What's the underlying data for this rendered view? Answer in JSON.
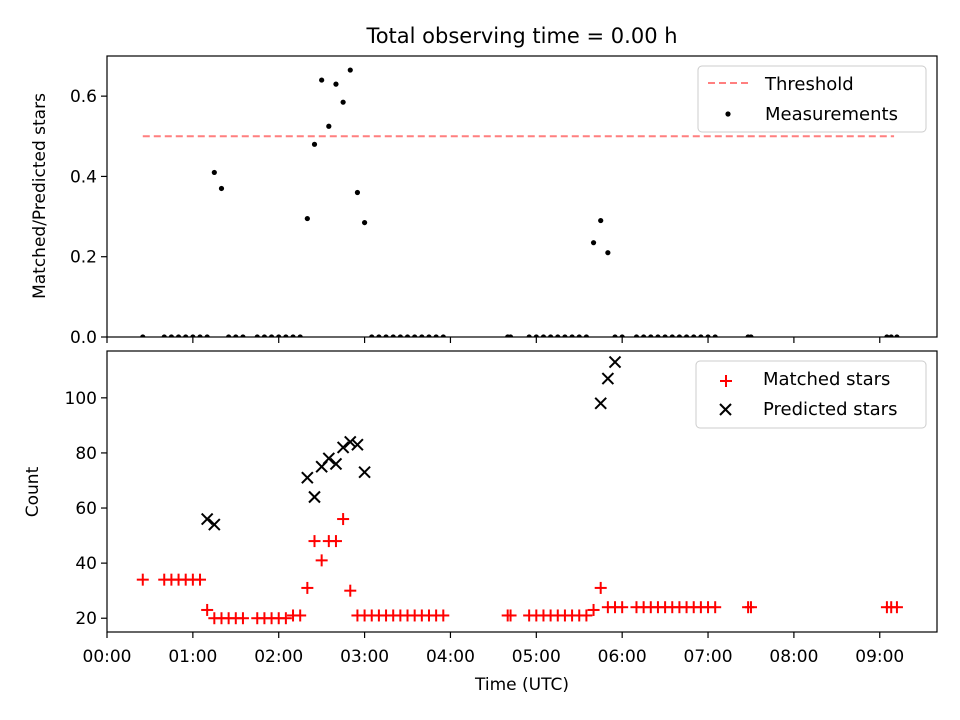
{
  "chart_data": [
    {
      "type": "scatter",
      "title": "Total observing time = 0.00 h",
      "xlabel": "",
      "ylabel": "Matched/Predicted stars",
      "xlim": [
        "00:00",
        "09:40"
      ],
      "ylim": [
        0,
        0.7
      ],
      "yticks": [
        0.0,
        0.2,
        0.4,
        0.6
      ],
      "ytick_labels": [
        "0.0",
        "0.2",
        "0.4",
        "0.6"
      ],
      "legend_position": "top-right",
      "threshold": {
        "name": "Threshold",
        "color": "#ff7f7f",
        "style": "dashed",
        "value": 0.5,
        "x_from": "00:25",
        "x_to": "09:10"
      },
      "series": [
        {
          "name": "Measurements",
          "color": "#000000",
          "marker": "dot",
          "x": [
            "00:25",
            "00:40",
            "00:45",
            "00:50",
            "00:55",
            "01:00",
            "01:05",
            "01:10",
            "01:15",
            "01:20",
            "01:25",
            "01:30",
            "01:35",
            "01:45",
            "01:50",
            "01:55",
            "02:00",
            "02:05",
            "02:10",
            "02:15",
            "02:20",
            "02:25",
            "02:30",
            "02:35",
            "02:40",
            "02:45",
            "02:50",
            "02:55",
            "03:00",
            "03:05",
            "03:10",
            "03:15",
            "03:20",
            "03:25",
            "03:30",
            "03:35",
            "03:40",
            "03:45",
            "03:50",
            "03:55",
            "04:40",
            "04:42",
            "04:55",
            "05:00",
            "05:05",
            "05:10",
            "05:15",
            "05:20",
            "05:25",
            "05:30",
            "05:35",
            "05:40",
            "05:45",
            "05:50",
            "05:55",
            "06:00",
            "06:10",
            "06:15",
            "06:20",
            "06:25",
            "06:30",
            "06:35",
            "06:40",
            "06:45",
            "06:50",
            "06:55",
            "07:00",
            "07:05",
            "07:28",
            "07:30",
            "09:05",
            "09:08",
            "09:12"
          ],
          "y": [
            0,
            0,
            0,
            0,
            0,
            0,
            0,
            0,
            0.41,
            0.37,
            0,
            0,
            0,
            0,
            0,
            0,
            0,
            0,
            0,
            0,
            0.295,
            0.48,
            0.64,
            0.525,
            0.63,
            0.585,
            0.665,
            0.36,
            0.285,
            0,
            0,
            0,
            0,
            0,
            0,
            0,
            0,
            0,
            0,
            0,
            0,
            0,
            0,
            0,
            0,
            0,
            0,
            0,
            0,
            0,
            0,
            0.235,
            0.29,
            0.21,
            0,
            0,
            0,
            0,
            0,
            0,
            0,
            0,
            0,
            0,
            0,
            0,
            0,
            0,
            0,
            0,
            0,
            0,
            0
          ]
        }
      ]
    },
    {
      "type": "scatter",
      "title": "",
      "xlabel": "Time (UTC)",
      "ylabel": "Count",
      "xlim": [
        "00:00",
        "09:40"
      ],
      "ylim": [
        15,
        117
      ],
      "xticks": [
        "00:00",
        "01:00",
        "02:00",
        "03:00",
        "04:00",
        "05:00",
        "06:00",
        "07:00",
        "08:00",
        "09:00"
      ],
      "yticks": [
        20,
        40,
        60,
        80,
        100
      ],
      "legend_position": "top-right",
      "series": [
        {
          "name": "Matched stars",
          "color": "#ff0000",
          "marker": "plus",
          "x": [
            "00:25",
            "00:40",
            "00:45",
            "00:50",
            "00:55",
            "01:00",
            "01:05",
            "01:10",
            "01:15",
            "01:20",
            "01:25",
            "01:30",
            "01:35",
            "01:45",
            "01:50",
            "01:55",
            "02:00",
            "02:05",
            "02:10",
            "02:15",
            "02:20",
            "02:25",
            "02:30",
            "02:35",
            "02:40",
            "02:45",
            "02:50",
            "02:55",
            "03:00",
            "03:05",
            "03:10",
            "03:15",
            "03:20",
            "03:25",
            "03:30",
            "03:35",
            "03:40",
            "03:45",
            "03:50",
            "03:55",
            "04:40",
            "04:42",
            "04:55",
            "05:00",
            "05:05",
            "05:10",
            "05:15",
            "05:20",
            "05:25",
            "05:30",
            "05:35",
            "05:40",
            "05:45",
            "05:50",
            "05:55",
            "06:00",
            "06:10",
            "06:15",
            "06:20",
            "06:25",
            "06:30",
            "06:35",
            "06:40",
            "06:45",
            "06:50",
            "06:55",
            "07:00",
            "07:05",
            "07:28",
            "07:30",
            "09:05",
            "09:08",
            "09:12"
          ],
          "y": [
            34,
            34,
            34,
            34,
            34,
            34,
            34,
            23,
            20,
            20,
            20,
            20,
            20,
            20,
            20,
            20,
            20,
            20,
            21,
            21,
            31,
            48,
            41,
            48,
            48,
            56,
            30,
            21,
            21,
            21,
            21,
            21,
            21,
            21,
            21,
            21,
            21,
            21,
            21,
            21,
            21,
            21,
            21,
            21,
            21,
            21,
            21,
            21,
            21,
            21,
            21,
            23,
            31,
            24,
            24,
            24,
            24,
            24,
            24,
            24,
            24,
            24,
            24,
            24,
            24,
            24,
            24,
            24,
            24,
            24,
            24,
            24,
            24
          ]
        },
        {
          "name": "Predicted stars",
          "color": "#000000",
          "marker": "cross",
          "x": [
            "01:10",
            "01:15",
            "02:20",
            "02:25",
            "02:30",
            "02:35",
            "02:40",
            "02:45",
            "02:50",
            "02:55",
            "03:00",
            "05:45",
            "05:50",
            "05:55"
          ],
          "y": [
            56,
            54,
            71,
            64,
            75,
            78,
            76,
            82,
            84,
            83,
            73,
            98,
            107,
            113
          ]
        }
      ]
    }
  ]
}
